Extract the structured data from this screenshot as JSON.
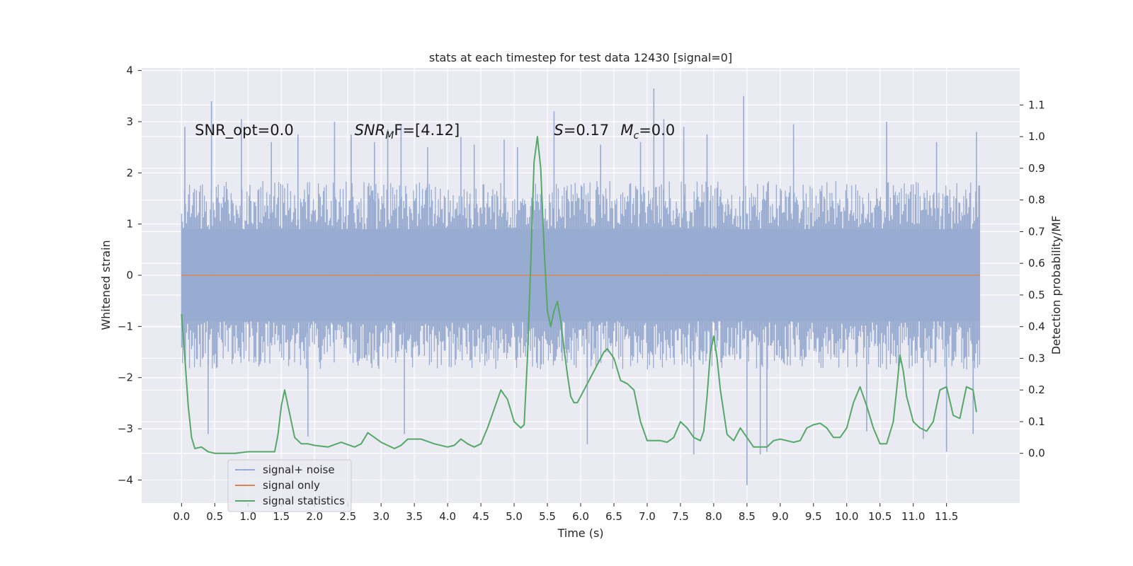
{
  "chart_data": {
    "type": "line",
    "title": "stats at each timestep for test data 12430 [signal=0]",
    "xlabel": "Time (s)",
    "ylabel": "Whitened strain",
    "y2label": "Detection probability/MF",
    "xlim": [
      -0.6,
      12.6
    ],
    "ylim": [
      -4.45,
      4.05
    ],
    "y2lim": [
      -0.157,
      1.217
    ],
    "grid": true,
    "legend_position": "lower-left",
    "x_ticks": [
      0.0,
      0.5,
      1.0,
      1.5,
      2.0,
      2.5,
      3.0,
      3.5,
      4.0,
      4.5,
      5.0,
      5.5,
      6.0,
      6.5,
      7.0,
      7.5,
      8.0,
      8.5,
      9.0,
      9.5,
      10.0,
      10.5,
      11.0,
      11.5
    ],
    "x_tick_labels": [
      "0.0",
      "0.5",
      "1.0",
      "1.5",
      "2.0",
      "2.5",
      "3.0",
      "3.5",
      "4.0",
      "4.5",
      "5.0",
      "5.5",
      "6.0",
      "6.5",
      "7.0",
      "7.5",
      "8.0",
      "8.5",
      "9.0",
      "9.5",
      "10.0",
      "10.5",
      "11.0",
      "11.5"
    ],
    "y_ticks": [
      -4,
      -3,
      -2,
      -1,
      0,
      1,
      2,
      3,
      4
    ],
    "y_tick_labels": [
      "−4",
      "−3",
      "−2",
      "−1",
      "0",
      "1",
      "2",
      "3",
      "4"
    ],
    "y2_ticks": [
      0.0,
      0.1,
      0.2,
      0.3,
      0.4,
      0.5,
      0.6,
      0.7,
      0.8,
      0.9,
      1.0,
      1.1
    ],
    "y2_tick_labels": [
      "0.0",
      "0.1",
      "0.2",
      "0.3",
      "0.4",
      "0.5",
      "0.6",
      "0.7",
      "0.8",
      "0.9",
      "1.0",
      "1.1"
    ],
    "annotations": [
      {
        "text": "SNR_opt=0.0",
        "x": 0.2,
        "y": 2.85
      },
      {
        "text": "SNR",
        "sub": "M",
        "rest": "F=[4.12]",
        "italic": true,
        "x": 2.6,
        "y": 2.85
      },
      {
        "text": "S",
        "rest": "=0.17",
        "italic": true,
        "x": 5.6,
        "y": 2.85
      },
      {
        "text": "M",
        "sub": "c",
        "rest": "=0.0",
        "italic": true,
        "x": 6.6,
        "y": 2.85
      }
    ],
    "colors": {
      "background": "#eaeaf2",
      "grid": "#ffffff",
      "noise": "#98abd0",
      "signal": "#dd8452",
      "stats": "#55a868"
    },
    "series": [
      {
        "name": "signal+ noise",
        "axis": "left",
        "kind": "noise-band",
        "x_range": [
          0.0,
          12.0
        ],
        "typical_range": [
          -1.6,
          1.6
        ],
        "spikes": [
          {
            "x": 0.05,
            "y": 2.9
          },
          {
            "x": 0.45,
            "y": 3.4
          },
          {
            "x": 0.9,
            "y": 3.05
          },
          {
            "x": 1.35,
            "y": 2.6
          },
          {
            "x": 1.75,
            "y": 2.75
          },
          {
            "x": 2.3,
            "y": 3.0
          },
          {
            "x": 2.55,
            "y": 2.75
          },
          {
            "x": 2.9,
            "y": 2.6
          },
          {
            "x": 3.1,
            "y": 2.85
          },
          {
            "x": 3.3,
            "y": 2.95
          },
          {
            "x": 3.7,
            "y": 2.5
          },
          {
            "x": 4.2,
            "y": 2.7
          },
          {
            "x": 4.4,
            "y": 2.55
          },
          {
            "x": 4.85,
            "y": 2.65
          },
          {
            "x": 5.05,
            "y": 2.5
          },
          {
            "x": 5.6,
            "y": 3.2
          },
          {
            "x": 6.3,
            "y": 2.55
          },
          {
            "x": 6.9,
            "y": 2.6
          },
          {
            "x": 7.1,
            "y": 3.65
          },
          {
            "x": 7.25,
            "y": 3.05
          },
          {
            "x": 7.55,
            "y": 2.9
          },
          {
            "x": 7.9,
            "y": 2.75
          },
          {
            "x": 8.45,
            "y": 3.5
          },
          {
            "x": 9.2,
            "y": 2.95
          },
          {
            "x": 10.6,
            "y": 3.0
          },
          {
            "x": 11.35,
            "y": 2.6
          },
          {
            "x": 11.95,
            "y": 2.8
          },
          {
            "x": 0.4,
            "y": -3.1
          },
          {
            "x": 1.9,
            "y": -3.15
          },
          {
            "x": 3.35,
            "y": -3.1
          },
          {
            "x": 6.1,
            "y": -3.3
          },
          {
            "x": 7.7,
            "y": -3.5
          },
          {
            "x": 8.5,
            "y": -4.1
          },
          {
            "x": 8.7,
            "y": -3.5
          },
          {
            "x": 8.8,
            "y": -3.45
          },
          {
            "x": 10.3,
            "y": -3.05
          },
          {
            "x": 11.15,
            "y": -3.2
          },
          {
            "x": 11.5,
            "y": -3.45
          },
          {
            "x": 11.9,
            "y": -3.1
          }
        ]
      },
      {
        "name": "signal only",
        "axis": "left",
        "x": [
          0.0,
          12.0
        ],
        "y": [
          0.0,
          0.0
        ]
      },
      {
        "name": "signal statistics",
        "axis": "right",
        "x": [
          0.0,
          0.05,
          0.1,
          0.15,
          0.2,
          0.3,
          0.4,
          0.5,
          0.6,
          0.8,
          1.0,
          1.2,
          1.4,
          1.45,
          1.5,
          1.55,
          1.6,
          1.7,
          1.8,
          1.9,
          2.0,
          2.2,
          2.4,
          2.6,
          2.7,
          2.8,
          2.9,
          3.0,
          3.2,
          3.3,
          3.4,
          3.6,
          3.8,
          4.0,
          4.1,
          4.2,
          4.3,
          4.4,
          4.5,
          4.6,
          4.8,
          4.9,
          5.0,
          5.1,
          5.15,
          5.2,
          5.25,
          5.3,
          5.35,
          5.4,
          5.45,
          5.5,
          5.55,
          5.6,
          5.65,
          5.7,
          5.75,
          5.8,
          5.85,
          5.9,
          5.95,
          6.0,
          6.1,
          6.2,
          6.3,
          6.35,
          6.4,
          6.5,
          6.6,
          6.7,
          6.8,
          6.9,
          7.0,
          7.1,
          7.2,
          7.3,
          7.4,
          7.5,
          7.6,
          7.7,
          7.8,
          7.85,
          7.9,
          7.95,
          8.0,
          8.05,
          8.1,
          8.2,
          8.3,
          8.4,
          8.5,
          8.6,
          8.7,
          8.8,
          8.9,
          9.0,
          9.1,
          9.2,
          9.3,
          9.4,
          9.5,
          9.6,
          9.7,
          9.8,
          9.9,
          10.0,
          10.1,
          10.2,
          10.3,
          10.4,
          10.5,
          10.6,
          10.7,
          10.75,
          10.8,
          10.85,
          10.9,
          11.0,
          11.1,
          11.2,
          11.3,
          11.4,
          11.5,
          11.6,
          11.7,
          11.8,
          11.9,
          11.95
        ],
        "y": [
          0.44,
          0.3,
          0.15,
          0.05,
          0.015,
          0.02,
          0.005,
          0.0,
          0.0,
          0.0,
          0.005,
          0.005,
          0.005,
          0.06,
          0.15,
          0.2,
          0.15,
          0.05,
          0.03,
          0.03,
          0.025,
          0.02,
          0.035,
          0.02,
          0.03,
          0.065,
          0.05,
          0.035,
          0.015,
          0.025,
          0.045,
          0.045,
          0.03,
          0.02,
          0.025,
          0.045,
          0.03,
          0.02,
          0.03,
          0.08,
          0.2,
          0.17,
          0.1,
          0.08,
          0.09,
          0.3,
          0.6,
          0.92,
          1.0,
          0.9,
          0.65,
          0.45,
          0.4,
          0.45,
          0.48,
          0.42,
          0.33,
          0.25,
          0.18,
          0.16,
          0.16,
          0.18,
          0.22,
          0.26,
          0.3,
          0.32,
          0.33,
          0.3,
          0.23,
          0.22,
          0.2,
          0.1,
          0.04,
          0.04,
          0.04,
          0.035,
          0.05,
          0.1,
          0.08,
          0.05,
          0.04,
          0.07,
          0.18,
          0.32,
          0.37,
          0.3,
          0.2,
          0.06,
          0.04,
          0.08,
          0.05,
          0.02,
          0.02,
          0.02,
          0.04,
          0.045,
          0.04,
          0.035,
          0.04,
          0.08,
          0.09,
          0.095,
          0.08,
          0.05,
          0.05,
          0.08,
          0.16,
          0.21,
          0.15,
          0.08,
          0.03,
          0.03,
          0.1,
          0.2,
          0.31,
          0.26,
          0.18,
          0.1,
          0.08,
          0.07,
          0.1,
          0.2,
          0.21,
          0.12,
          0.11,
          0.21,
          0.2,
          0.13
        ]
      }
    ]
  }
}
